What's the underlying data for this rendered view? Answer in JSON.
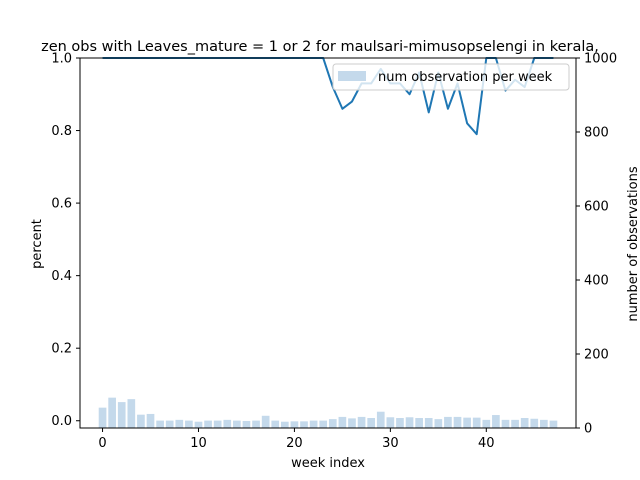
{
  "chart_data": {
    "type": "bar+line",
    "title": "zen obs with Leaves_mature = 1 or 2 for maulsari-mimusopselengi in kerala,",
    "xlabel": "week index",
    "ylabel_left": "percent",
    "ylabel_right": "number of observations",
    "x_ticks": [
      0,
      10,
      20,
      30,
      40
    ],
    "y_left_ticks": [
      "0.0",
      "0.2",
      "0.4",
      "0.6",
      "0.8",
      "1.0"
    ],
    "y_right_ticks": [
      "0",
      "200",
      "400",
      "600",
      "800",
      "1000"
    ],
    "xlim": [
      -2.35,
      49.35
    ],
    "ylim_left": [
      -0.02,
      1.0
    ],
    "ylim_right": [
      0,
      1000
    ],
    "legend": {
      "label": "num observation per week",
      "placement": "top-right"
    },
    "bar_color": "#c4d9eb",
    "line_color": "#1f77b4",
    "bars": {
      "name": "num observation per week",
      "x": [
        0,
        1,
        2,
        3,
        4,
        5,
        6,
        7,
        8,
        9,
        10,
        11,
        12,
        13,
        14,
        15,
        16,
        17,
        18,
        19,
        20,
        21,
        22,
        23,
        24,
        25,
        26,
        27,
        28,
        29,
        30,
        31,
        32,
        33,
        34,
        35,
        36,
        37,
        38,
        39,
        40,
        41,
        42,
        43,
        44,
        45,
        46,
        47
      ],
      "values": [
        55,
        82,
        70,
        78,
        36,
        38,
        20,
        20,
        22,
        20,
        17,
        20,
        20,
        22,
        20,
        19,
        20,
        33,
        20,
        17,
        18,
        18,
        20,
        20,
        24,
        30,
        26,
        30,
        27,
        44,
        29,
        27,
        29,
        27,
        27,
        24,
        30,
        30,
        28,
        28,
        22,
        35,
        22,
        22,
        27,
        25,
        22,
        20
      ]
    },
    "line": {
      "name": "percent",
      "x": [
        0,
        1,
        2,
        3,
        4,
        5,
        6,
        7,
        8,
        9,
        10,
        11,
        12,
        13,
        14,
        15,
        16,
        17,
        18,
        19,
        20,
        21,
        22,
        23,
        24,
        25,
        26,
        27,
        28,
        29,
        30,
        31,
        32,
        33,
        34,
        35,
        36,
        37,
        38,
        39,
        40,
        41,
        42,
        43,
        44,
        45,
        46,
        47
      ],
      "values": [
        1,
        1,
        1,
        1,
        1,
        1,
        1,
        1,
        1,
        1,
        1,
        1,
        1,
        1,
        1,
        1,
        1,
        1,
        1,
        1,
        1,
        1,
        1,
        1,
        0.92,
        0.86,
        0.88,
        0.93,
        0.93,
        0.97,
        0.93,
        0.93,
        0.9,
        0.96,
        0.85,
        0.96,
        0.86,
        0.93,
        0.82,
        0.79,
        1,
        1,
        0.91,
        0.94,
        0.92,
        1,
        1,
        1
      ]
    }
  }
}
